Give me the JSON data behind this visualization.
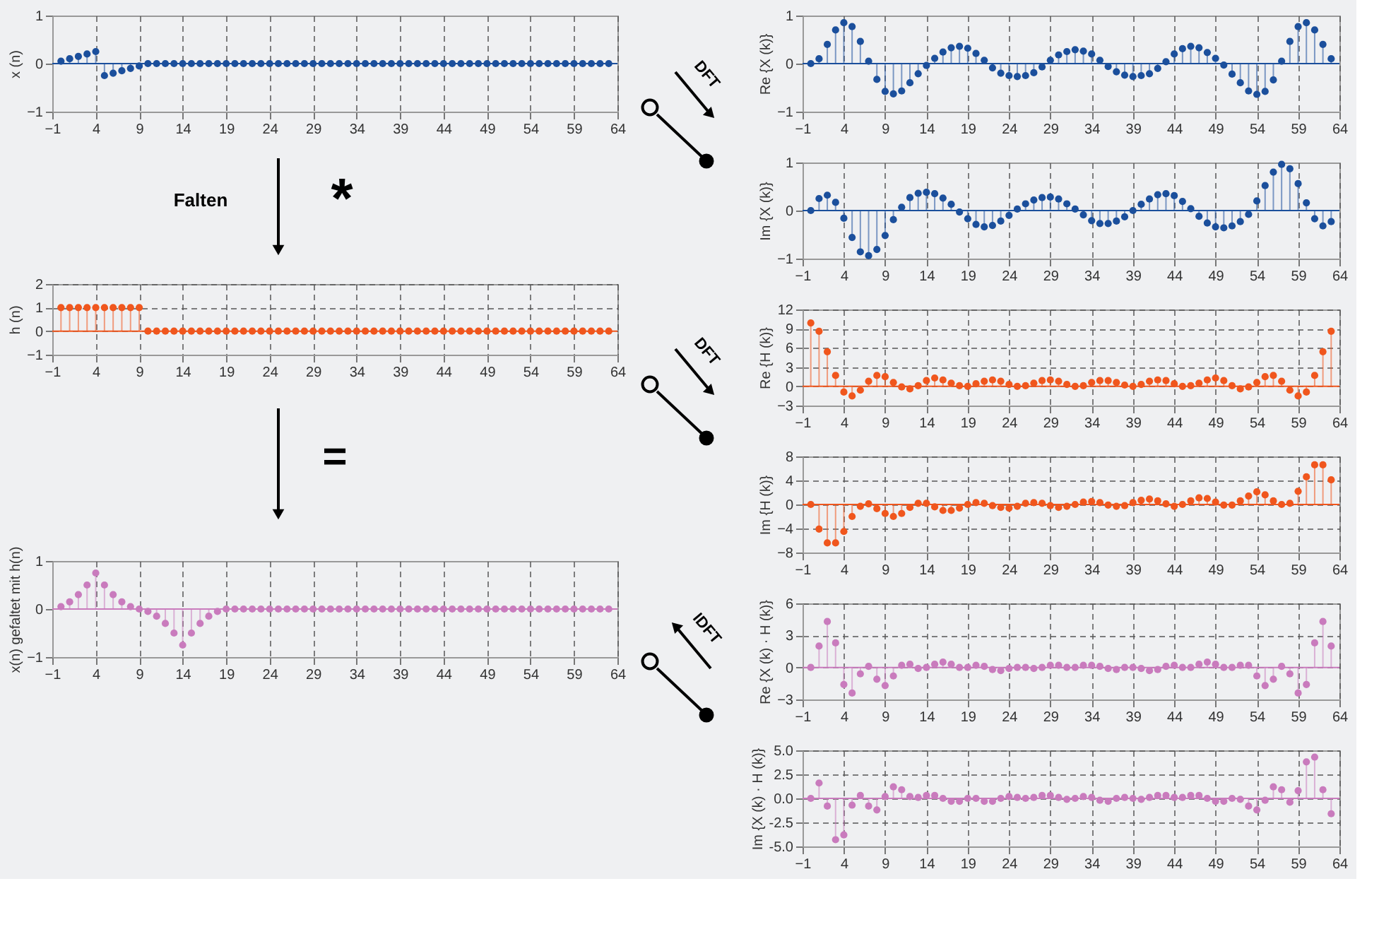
{
  "chart_data": [
    {
      "type": "lollipop",
      "ylabel": "x (n)",
      "annotations": [
        "Falten",
        "*",
        "DFT"
      ],
      "color": "#1b4f9c",
      "marker": "circle",
      "grid": "x",
      "xlim": [
        -1,
        64
      ],
      "xticks": [
        -1,
        4,
        9,
        14,
        19,
        24,
        29,
        34,
        39,
        44,
        49,
        54,
        59,
        64
      ],
      "ylim": [
        -1,
        1
      ],
      "yticks": [
        -1,
        0,
        1
      ],
      "ref_lines": [
        {
          "axis": "y",
          "value": 0
        }
      ],
      "x": [
        0,
        1,
        2,
        3,
        4,
        5,
        6,
        7,
        8,
        9,
        10,
        11,
        12,
        13,
        14,
        15,
        16,
        17,
        18,
        19,
        20,
        21,
        22,
        23,
        24,
        25,
        26,
        27,
        28,
        29,
        30,
        31,
        32,
        33,
        34,
        35,
        36,
        37,
        38,
        39,
        40,
        41,
        42,
        43,
        44,
        45,
        46,
        47,
        48,
        49,
        50,
        51,
        52,
        53,
        54,
        55,
        56,
        57,
        58,
        59,
        60,
        61,
        62,
        63
      ],
      "values": [
        0.05,
        0.1,
        0.15,
        0.2,
        0.25,
        -0.25,
        -0.2,
        -0.15,
        -0.1,
        -0.05,
        0,
        0,
        0,
        0,
        0,
        0,
        0,
        0,
        0,
        0,
        0,
        0,
        0,
        0,
        0,
        0,
        0,
        0,
        0,
        0,
        0,
        0,
        0,
        0,
        0,
        0,
        0,
        0,
        0,
        0,
        0,
        0,
        0,
        0,
        0,
        0,
        0,
        0,
        0,
        0,
        0,
        0,
        0,
        0,
        0,
        0,
        0,
        0,
        0,
        0,
        0,
        0,
        0,
        0
      ]
    },
    {
      "type": "lollipop",
      "ylabel": "Re {X (k)}",
      "color": "#1b4f9c",
      "marker": "circle",
      "grid": "x",
      "xlim": [
        -1,
        64
      ],
      "xticks": [
        -1,
        4,
        9,
        14,
        19,
        24,
        29,
        34,
        39,
        44,
        49,
        54,
        59,
        64
      ],
      "ylim": [
        -1,
        1
      ],
      "yticks": [
        -1,
        0,
        1
      ],
      "ref_lines": [
        {
          "axis": "y",
          "value": 0
        }
      ],
      "x": [
        0,
        1,
        2,
        3,
        4,
        5,
        6,
        7,
        8,
        9,
        10,
        11,
        12,
        13,
        14,
        15,
        16,
        17,
        18,
        19,
        20,
        21,
        22,
        23,
        24,
        25,
        26,
        27,
        28,
        29,
        30,
        31,
        32,
        33,
        34,
        35,
        36,
        37,
        38,
        39,
        40,
        41,
        42,
        43,
        44,
        45,
        46,
        47,
        48,
        49,
        50,
        51,
        52,
        53,
        54,
        55,
        56,
        57,
        58,
        59,
        60,
        61,
        62,
        63
      ],
      "values": [
        0,
        0.1,
        0.4,
        0.7,
        0.85,
        0.77,
        0.46,
        0.05,
        -0.33,
        -0.58,
        -0.63,
        -0.57,
        -0.4,
        -0.21,
        -0.04,
        0.11,
        0.24,
        0.33,
        0.36,
        0.32,
        0.21,
        0.07,
        -0.09,
        -0.2,
        -0.25,
        -0.27,
        -0.25,
        -0.19,
        -0.07,
        0.07,
        0.18,
        0.25,
        0.29,
        0.26,
        0.2,
        0.07,
        -0.06,
        -0.17,
        -0.24,
        -0.27,
        -0.25,
        -0.21,
        -0.1,
        0.04,
        0.2,
        0.31,
        0.36,
        0.33,
        0.23,
        0.11,
        -0.03,
        -0.22,
        -0.4,
        -0.57,
        -0.64,
        -0.58,
        -0.34,
        0.05,
        0.46,
        0.77,
        0.85,
        0.7,
        0.4,
        0.1
      ]
    },
    {
      "type": "lollipop",
      "ylabel": "Im {X (k)}",
      "color": "#1b4f9c",
      "marker": "circle",
      "grid": "x",
      "xlim": [
        -1,
        64
      ],
      "xticks": [
        -1,
        4,
        9,
        14,
        19,
        24,
        29,
        34,
        39,
        44,
        49,
        54,
        59,
        64
      ],
      "ylim": [
        -1,
        1
      ],
      "yticks": [
        -1,
        0,
        1
      ],
      "ref_lines": [
        {
          "axis": "y",
          "value": 0
        }
      ],
      "x": [
        0,
        1,
        2,
        3,
        4,
        5,
        6,
        7,
        8,
        9,
        10,
        11,
        12,
        13,
        14,
        15,
        16,
        17,
        18,
        19,
        20,
        21,
        22,
        23,
        24,
        25,
        26,
        27,
        28,
        29,
        30,
        31,
        32,
        33,
        34,
        35,
        36,
        37,
        38,
        39,
        40,
        41,
        42,
        43,
        44,
        45,
        46,
        47,
        48,
        49,
        50,
        51,
        52,
        53,
        54,
        55,
        56,
        57,
        58,
        59,
        60,
        61,
        62,
        63
      ],
      "values": [
        0,
        0.25,
        0.32,
        0.17,
        -0.16,
        -0.56,
        -0.86,
        -0.94,
        -0.81,
        -0.52,
        -0.19,
        0.07,
        0.27,
        0.36,
        0.38,
        0.35,
        0.26,
        0.13,
        -0.03,
        -0.17,
        -0.29,
        -0.34,
        -0.31,
        -0.22,
        -0.1,
        0.03,
        0.14,
        0.22,
        0.27,
        0.28,
        0.24,
        0.14,
        0.03,
        -0.09,
        -0.21,
        -0.27,
        -0.27,
        -0.22,
        -0.13,
        0,
        0.13,
        0.24,
        0.33,
        0.35,
        0.31,
        0.19,
        0.04,
        -0.12,
        -0.26,
        -0.34,
        -0.36,
        -0.32,
        -0.23,
        -0.08,
        0.2,
        0.52,
        0.8,
        0.96,
        0.87,
        0.56,
        0.16,
        -0.17,
        -0.32,
        -0.23
      ]
    },
    {
      "type": "lollipop",
      "ylabel": "h (n)",
      "annotations": [
        "=",
        "DFT"
      ],
      "color": "#f0561d",
      "marker": "circle",
      "grid": true,
      "xlim": [
        -1,
        64
      ],
      "xticks": [
        -1,
        4,
        9,
        14,
        19,
        24,
        29,
        34,
        39,
        44,
        49,
        54,
        59,
        64
      ],
      "ylim": [
        -1,
        2
      ],
      "yticks": [
        -1,
        0,
        1,
        2
      ],
      "ref_lines": [
        {
          "axis": "y",
          "value": 0
        }
      ],
      "x": [
        0,
        1,
        2,
        3,
        4,
        5,
        6,
        7,
        8,
        9,
        10,
        11,
        12,
        13,
        14,
        15,
        16,
        17,
        18,
        19,
        20,
        21,
        22,
        23,
        24,
        25,
        26,
        27,
        28,
        29,
        30,
        31,
        32,
        33,
        34,
        35,
        36,
        37,
        38,
        39,
        40,
        41,
        42,
        43,
        44,
        45,
        46,
        47,
        48,
        49,
        50,
        51,
        52,
        53,
        54,
        55,
        56,
        57,
        58,
        59,
        60,
        61,
        62,
        63
      ],
      "values": [
        1,
        1,
        1,
        1,
        1,
        1,
        1,
        1,
        1,
        1,
        0,
        0,
        0,
        0,
        0,
        0,
        0,
        0,
        0,
        0,
        0,
        0,
        0,
        0,
        0,
        0,
        0,
        0,
        0,
        0,
        0,
        0,
        0,
        0,
        0,
        0,
        0,
        0,
        0,
        0,
        0,
        0,
        0,
        0,
        0,
        0,
        0,
        0,
        0,
        0,
        0,
        0,
        0,
        0,
        0,
        0,
        0,
        0,
        0,
        0,
        0,
        0,
        0,
        0
      ]
    },
    {
      "type": "lollipop",
      "ylabel": "Re {H (k)}",
      "color": "#f0561d",
      "marker": "circle",
      "grid": true,
      "xlim": [
        -1,
        64
      ],
      "xticks": [
        -1,
        4,
        9,
        14,
        19,
        24,
        29,
        34,
        39,
        44,
        49,
        54,
        59,
        64
      ],
      "ylim": [
        -3,
        12
      ],
      "yticks": [
        -3,
        0,
        3,
        6,
        9,
        12
      ],
      "ref_lines": [
        {
          "axis": "y",
          "value": 0
        }
      ],
      "x": [
        0,
        1,
        2,
        3,
        4,
        5,
        6,
        7,
        8,
        9,
        10,
        11,
        12,
        13,
        14,
        15,
        16,
        17,
        18,
        19,
        20,
        21,
        22,
        23,
        24,
        25,
        26,
        27,
        28,
        29,
        30,
        31,
        32,
        33,
        34,
        35,
        36,
        37,
        38,
        39,
        40,
        41,
        42,
        43,
        44,
        45,
        46,
        47,
        48,
        49,
        50,
        51,
        52,
        53,
        54,
        55,
        56,
        57,
        58,
        59,
        60,
        61,
        62,
        63
      ],
      "values": [
        9.9,
        8.6,
        5.4,
        1.7,
        -0.9,
        -1.5,
        -0.6,
        0.8,
        1.7,
        1.5,
        0.6,
        -0.1,
        -0.4,
        0.1,
        0.9,
        1.3,
        1,
        0.5,
        0.1,
        0,
        0.4,
        0.8,
        1,
        0.8,
        0.3,
        0,
        0.1,
        0.5,
        0.9,
        1,
        0.8,
        0.3,
        0,
        0.1,
        0.6,
        0.9,
        0.9,
        0.6,
        0.2,
        0,
        0.3,
        0.8,
        1,
        0.9,
        0.4,
        0,
        0.1,
        0.5,
        1,
        1.3,
        0.9,
        0.1,
        -0.4,
        -0.1,
        0.6,
        1.5,
        1.7,
        0.8,
        -0.6,
        -1.5,
        -0.9,
        1.7,
        5.4,
        8.6
      ]
    },
    {
      "type": "lollipop",
      "ylabel": "Im {H (k)}",
      "color": "#f0561d",
      "marker": "circle",
      "grid": true,
      "xlim": [
        -1,
        64
      ],
      "xticks": [
        -1,
        4,
        9,
        14,
        19,
        24,
        29,
        34,
        39,
        44,
        49,
        54,
        59,
        64
      ],
      "ylim": [
        -8,
        8
      ],
      "yticks": [
        -8,
        -4,
        0,
        4,
        8
      ],
      "ref_lines": [
        {
          "axis": "y",
          "value": 0
        }
      ],
      "x": [
        0,
        1,
        2,
        3,
        4,
        5,
        6,
        7,
        8,
        9,
        10,
        11,
        12,
        13,
        14,
        15,
        16,
        17,
        18,
        19,
        20,
        21,
        22,
        23,
        24,
        25,
        26,
        27,
        28,
        29,
        30,
        31,
        32,
        33,
        34,
        35,
        36,
        37,
        38,
        39,
        40,
        41,
        42,
        43,
        44,
        45,
        46,
        47,
        48,
        49,
        50,
        51,
        52,
        53,
        54,
        55,
        56,
        57,
        58,
        59,
        60,
        61,
        62,
        63
      ],
      "values": [
        0,
        -4.1,
        -6.4,
        -6.4,
        -4.5,
        -2,
        -0.3,
        0.1,
        -0.7,
        -1.5,
        -2,
        -1.5,
        -0.5,
        0.2,
        0.2,
        -0.4,
        -1,
        -1,
        -0.6,
        0,
        0.3,
        0.2,
        -0.2,
        -0.5,
        -0.6,
        -0.3,
        0.2,
        0.3,
        0.2,
        -0.2,
        -0.5,
        -0.3,
        0,
        0.4,
        0.5,
        0.3,
        -0.1,
        -0.3,
        -0.2,
        0.3,
        0.7,
        0.9,
        0.6,
        0.1,
        -0.3,
        0,
        0.6,
        1.1,
        1,
        0.4,
        -0.1,
        -0.1,
        0.6,
        1.4,
        2.1,
        1.6,
        0.6,
        0,
        0.2,
        2.2,
        4.6,
        6.6,
        6.6,
        4.1
      ]
    },
    {
      "type": "lollipop",
      "ylabel": "x(n) gefaltet mit h(n)",
      "annotations": [
        "IDFT"
      ],
      "color": "#c97bbd",
      "marker": "circle",
      "grid": "x",
      "xlim": [
        -1,
        64
      ],
      "xticks": [
        -1,
        4,
        9,
        14,
        19,
        24,
        29,
        34,
        39,
        44,
        49,
        54,
        59,
        64
      ],
      "ylim": [
        -1,
        1
      ],
      "yticks": [
        -1,
        0,
        1
      ],
      "ref_lines": [
        {
          "axis": "y",
          "value": 0
        }
      ],
      "x": [
        0,
        1,
        2,
        3,
        4,
        5,
        6,
        7,
        8,
        9,
        10,
        11,
        12,
        13,
        14,
        15,
        16,
        17,
        18,
        19,
        20,
        21,
        22,
        23,
        24,
        25,
        26,
        27,
        28,
        29,
        30,
        31,
        32,
        33,
        34,
        35,
        36,
        37,
        38,
        39,
        40,
        41,
        42,
        43,
        44,
        45,
        46,
        47,
        48,
        49,
        50,
        51,
        52,
        53,
        54,
        55,
        56,
        57,
        58,
        59,
        60,
        61,
        62,
        63
      ],
      "values": [
        0.05,
        0.15,
        0.3,
        0.5,
        0.75,
        0.5,
        0.3,
        0.15,
        0.05,
        0,
        -0.05,
        -0.15,
        -0.3,
        -0.5,
        -0.75,
        -0.5,
        -0.3,
        -0.15,
        -0.05,
        0,
        0,
        0,
        0,
        0,
        0,
        0,
        0,
        0,
        0,
        0,
        0,
        0,
        0,
        0,
        0,
        0,
        0,
        0,
        0,
        0,
        0,
        0,
        0,
        0,
        0,
        0,
        0,
        0,
        0,
        0,
        0,
        0,
        0,
        0,
        0,
        0,
        0,
        0,
        0,
        0,
        0,
        0,
        0,
        0
      ]
    },
    {
      "type": "lollipop",
      "ylabel": "Re {X (k) · H (k)}",
      "color": "#c97bbd",
      "marker": "circle",
      "grid": true,
      "xlim": [
        -1,
        64
      ],
      "xticks": [
        -1,
        4,
        9,
        14,
        19,
        24,
        29,
        34,
        39,
        44,
        49,
        54,
        59,
        64
      ],
      "ylim": [
        -3,
        6
      ],
      "yticks": [
        -3,
        0,
        3,
        6
      ],
      "ref_lines": [
        {
          "axis": "y",
          "value": 0
        }
      ],
      "x": [
        0,
        1,
        2,
        3,
        4,
        5,
        6,
        7,
        8,
        9,
        10,
        11,
        12,
        13,
        14,
        15,
        16,
        17,
        18,
        19,
        20,
        21,
        22,
        23,
        24,
        25,
        26,
        27,
        28,
        29,
        30,
        31,
        32,
        33,
        34,
        35,
        36,
        37,
        38,
        39,
        40,
        41,
        42,
        43,
        44,
        45,
        46,
        47,
        48,
        49,
        50,
        51,
        52,
        53,
        54,
        55,
        56,
        57,
        58,
        59,
        60,
        61,
        62,
        63
      ],
      "values": [
        0,
        2,
        4.3,
        2.3,
        -1.6,
        -2.4,
        -0.6,
        0.1,
        -1.1,
        -1.7,
        -0.8,
        0.2,
        0.3,
        -0.1,
        0,
        0.3,
        0.5,
        0.3,
        0,
        0,
        0.2,
        0.1,
        -0.2,
        -0.3,
        -0.1,
        0,
        0,
        -0.1,
        0,
        0.2,
        0.2,
        0,
        0,
        0.2,
        0.2,
        0.1,
        -0.1,
        -0.2,
        0,
        0,
        -0.1,
        -0.3,
        -0.2,
        0.1,
        0.2,
        0,
        0,
        0.3,
        0.5,
        0.3,
        0,
        0,
        0.2,
        0.2,
        -0.8,
        -1.7,
        -1.1,
        0.1,
        -0.6,
        -2.4,
        -1.6,
        2.3,
        4.3,
        2
      ]
    },
    {
      "type": "lollipop",
      "ylabel": "Im {X (k) · H (k)}",
      "color": "#c97bbd",
      "marker": "circle",
      "grid": true,
      "xlim": [
        -1,
        64
      ],
      "xticks": [
        -1,
        4,
        9,
        14,
        19,
        24,
        29,
        34,
        39,
        44,
        49,
        54,
        59,
        64
      ],
      "ylim": [
        -5,
        5
      ],
      "yticks": [
        {
          "value": -5,
          "label": "-5.0"
        },
        {
          "value": -2.5,
          "label": "-2.5"
        },
        {
          "value": 0,
          "label": "0.0"
        },
        {
          "value": 2.5,
          "label": "2.5"
        },
        {
          "value": 5,
          "label": "5.0"
        }
      ],
      "ref_lines": [
        {
          "axis": "y",
          "value": 0
        }
      ],
      "x": [
        0,
        1,
        2,
        3,
        4,
        5,
        6,
        7,
        8,
        9,
        10,
        11,
        12,
        13,
        14,
        15,
        16,
        17,
        18,
        19,
        20,
        21,
        22,
        23,
        24,
        25,
        26,
        27,
        28,
        29,
        30,
        31,
        32,
        33,
        34,
        35,
        36,
        37,
        38,
        39,
        40,
        41,
        42,
        43,
        44,
        45,
        46,
        47,
        48,
        49,
        50,
        51,
        52,
        53,
        54,
        55,
        56,
        57,
        58,
        59,
        60,
        61,
        62,
        63
      ],
      "values": [
        0,
        1.6,
        -0.8,
        -4.3,
        -3.8,
        -0.7,
        0.3,
        -0.8,
        -1.2,
        0.2,
        1.2,
        0.9,
        0.2,
        0.1,
        0.3,
        0.3,
        0,
        -0.3,
        -0.3,
        0,
        0,
        -0.3,
        -0.3,
        0,
        0.2,
        0.1,
        0,
        0.1,
        0.3,
        0.3,
        0.1,
        -0.1,
        0,
        0.2,
        0.1,
        -0.2,
        -0.3,
        0,
        0.1,
        0,
        -0.1,
        0.1,
        0.3,
        0.3,
        0.1,
        0.1,
        0.3,
        0.3,
        0,
        -0.3,
        -0.3,
        0,
        -0.1,
        -0.8,
        -1.2,
        -0.2,
        1.2,
        0.9,
        -0.4,
        0.8,
        3.8,
        4.3,
        0.9,
        -1.6
      ]
    }
  ]
}
